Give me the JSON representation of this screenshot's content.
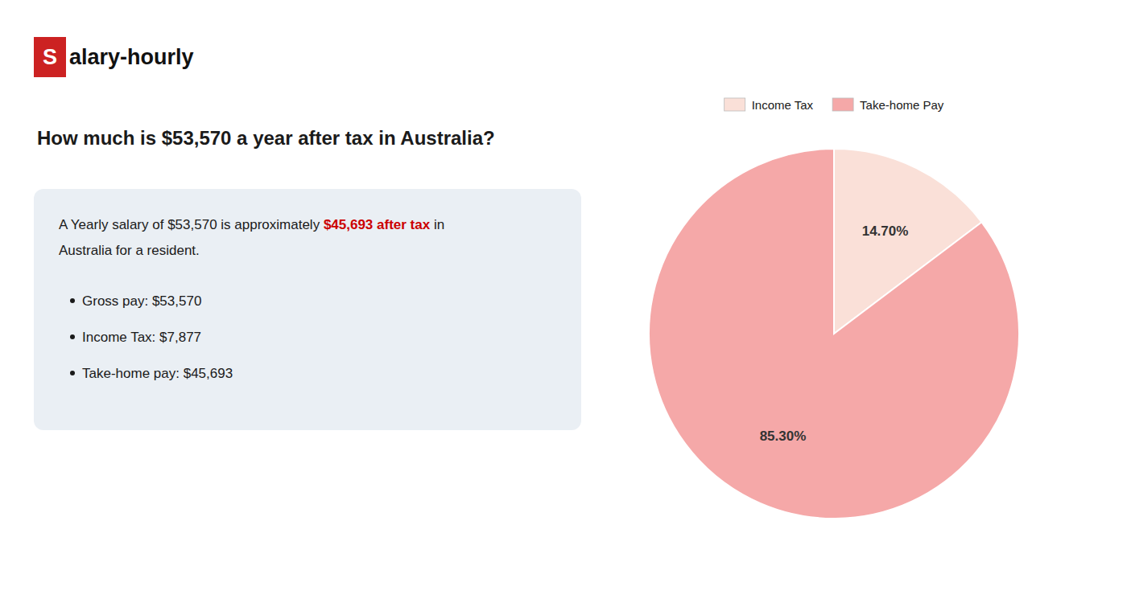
{
  "chart_data": {
    "type": "pie",
    "title": "How much is $53,570 a year after tax in Australia?",
    "categories": [
      "Income Tax",
      "Take-home Pay"
    ],
    "values": [
      14.7,
      85.3
    ],
    "value_labels": [
      "14.70%",
      "85.30%"
    ],
    "colors": [
      "#fae0d8",
      "#f5a8a8"
    ],
    "data_labels": true,
    "legend": "top",
    "annotations": [
      {
        "text": "S",
        "color": "#cc2222"
      },
      {
        "text": "alary-hourly"
      },
      {
        "text": "A Yearly salary of $53,570 is approximately "
      },
      {
        "text": "$45,693 after tax",
        "color": "#cc0000"
      },
      {
        "text": " in"
      },
      {
        "text": "Australia for a resident."
      },
      {
        "text": "Gross pay: $53,570"
      },
      {
        "text": "Income Tax: $7,877"
      },
      {
        "text": "Take-home pay: $45,693"
      }
    ]
  }
}
